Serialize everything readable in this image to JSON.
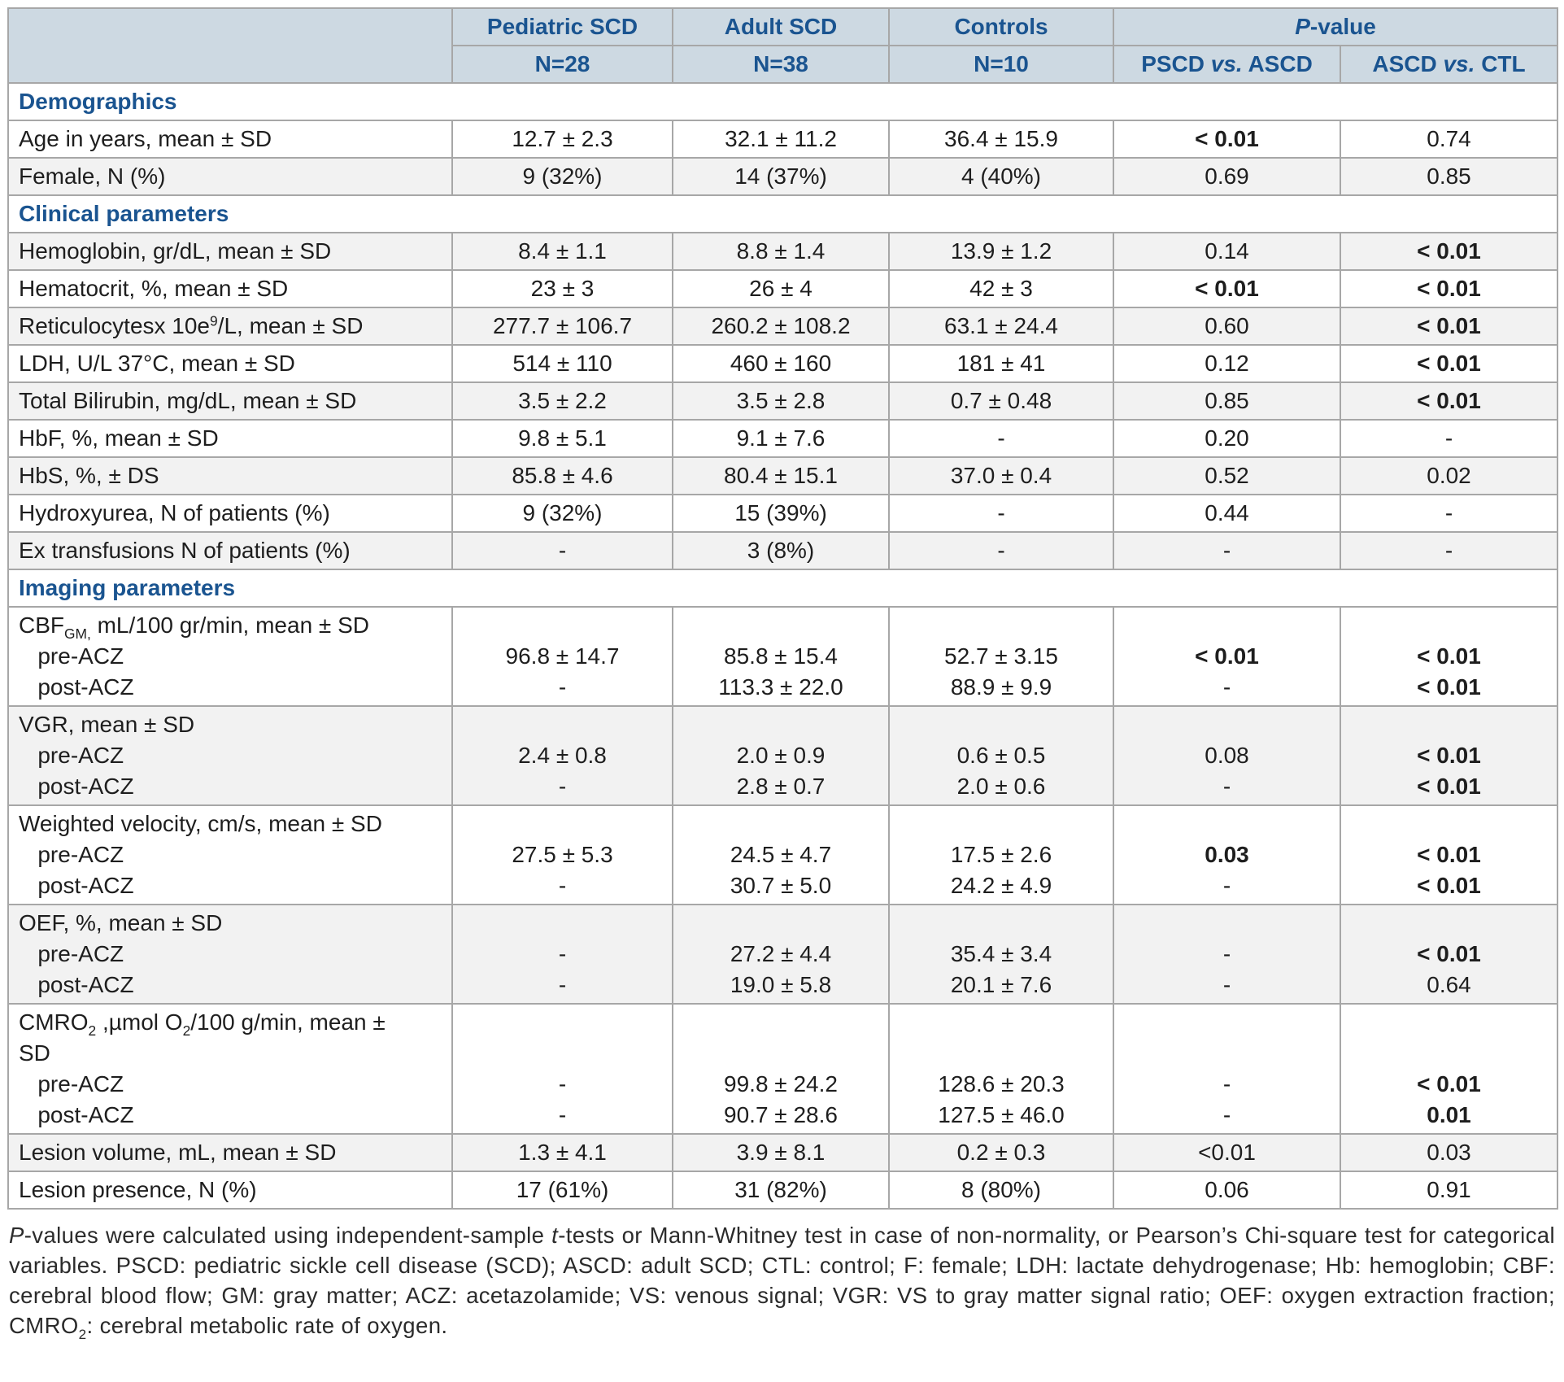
{
  "colors": {
    "header_bg": "#cdd9e2",
    "accent_blue": "#1a5490",
    "row_shade": "#f2f2f2",
    "border_gray": "#a7a7a7"
  },
  "table": {
    "header": {
      "corner": "",
      "cols": [
        {
          "title": [
            {
              "t": "Pediatric SCD"
            }
          ],
          "sub": [
            {
              "t": "N=28"
            }
          ]
        },
        {
          "title": [
            {
              "t": "Adult SCD"
            }
          ],
          "sub": [
            {
              "t": "N=38"
            }
          ]
        },
        {
          "title": [
            {
              "t": "Controls"
            }
          ],
          "sub": [
            {
              "t": "N=10"
            }
          ]
        }
      ],
      "pvalue": {
        "title": [
          {
            "t": "P",
            "s": "i"
          },
          {
            "t": "-value"
          }
        ],
        "subs": [
          [
            {
              "t": "PSCD "
            },
            {
              "t": "vs.",
              "s": "i"
            },
            {
              "t": " ASCD"
            }
          ],
          [
            {
              "t": "ASCD "
            },
            {
              "t": "vs.",
              "s": "i"
            },
            {
              "t": " CTL"
            }
          ]
        ]
      }
    },
    "rows": [
      {
        "kind": "section",
        "label": [
          {
            "t": "Demographics"
          }
        ]
      },
      {
        "kind": "data",
        "shade": false,
        "label": [
          {
            "t": "Age in years, mean ± SD"
          }
        ],
        "cells": [
          [
            {
              "t": "12.7 ± 2.3"
            }
          ],
          [
            {
              "t": "32.1 ± 11.2"
            }
          ],
          [
            {
              "t": "36.4 ± 15.9"
            }
          ],
          [
            {
              "t": "< 0.01",
              "s": "b"
            }
          ],
          [
            {
              "t": "0.74"
            }
          ]
        ]
      },
      {
        "kind": "data",
        "shade": true,
        "label": [
          {
            "t": "Female, N (%)"
          }
        ],
        "cells": [
          [
            {
              "t": "9 (32%)"
            }
          ],
          [
            {
              "t": "14 (37%)"
            }
          ],
          [
            {
              "t": "4 (40%)"
            }
          ],
          [
            {
              "t": "0.69"
            }
          ],
          [
            {
              "t": "0.85"
            }
          ]
        ]
      },
      {
        "kind": "section",
        "label": [
          {
            "t": "Clinical parameters"
          }
        ]
      },
      {
        "kind": "data",
        "shade": true,
        "label": [
          {
            "t": "Hemoglobin, gr/dL, mean ± SD"
          }
        ],
        "cells": [
          [
            {
              "t": "8.4 ± 1.1"
            }
          ],
          [
            {
              "t": "8.8 ± 1.4"
            }
          ],
          [
            {
              "t": "13.9 ± 1.2"
            }
          ],
          [
            {
              "t": "0.14"
            }
          ],
          [
            {
              "t": "< 0.01",
              "s": "b"
            }
          ]
        ]
      },
      {
        "kind": "data",
        "shade": false,
        "label": [
          {
            "t": "Hematocrit, %, mean ± SD"
          }
        ],
        "cells": [
          [
            {
              "t": "23 ± 3"
            }
          ],
          [
            {
              "t": "26 ± 4"
            }
          ],
          [
            {
              "t": "42 ± 3"
            }
          ],
          [
            {
              "t": "< 0.01",
              "s": "b"
            }
          ],
          [
            {
              "t": "< 0.01",
              "s": "b"
            }
          ]
        ]
      },
      {
        "kind": "data",
        "shade": true,
        "label": [
          {
            "t": "Reticulocytesx 10e"
          },
          {
            "t": "9",
            "s": "sup"
          },
          {
            "t": "/L, mean ± SD"
          }
        ],
        "cells": [
          [
            {
              "t": "277.7 ± 106.7"
            }
          ],
          [
            {
              "t": "260.2 ± 108.2"
            }
          ],
          [
            {
              "t": "63.1 ± 24.4"
            }
          ],
          [
            {
              "t": "0.60"
            }
          ],
          [
            {
              "t": "< 0.01",
              "s": "b"
            }
          ]
        ]
      },
      {
        "kind": "data",
        "shade": false,
        "label": [
          {
            "t": "LDH, U/L 37°C, mean ± SD"
          }
        ],
        "cells": [
          [
            {
              "t": "514 ± 110"
            }
          ],
          [
            {
              "t": "460 ± 160"
            }
          ],
          [
            {
              "t": "181 ± 41"
            }
          ],
          [
            {
              "t": "0.12"
            }
          ],
          [
            {
              "t": "< 0.01",
              "s": "b"
            }
          ]
        ]
      },
      {
        "kind": "data",
        "shade": true,
        "label": [
          {
            "t": "Total Bilirubin, mg/dL, mean ± SD"
          }
        ],
        "cells": [
          [
            {
              "t": "3.5 ± 2.2"
            }
          ],
          [
            {
              "t": "3.5 ± 2.8"
            }
          ],
          [
            {
              "t": "0.7 ± 0.48"
            }
          ],
          [
            {
              "t": "0.85"
            }
          ],
          [
            {
              "t": "< 0.01",
              "s": "b"
            }
          ]
        ]
      },
      {
        "kind": "data",
        "shade": false,
        "label": [
          {
            "t": "HbF, %, mean ± SD"
          }
        ],
        "cells": [
          [
            {
              "t": "9.8 ± 5.1"
            }
          ],
          [
            {
              "t": "9.1 ± 7.6"
            }
          ],
          [
            {
              "t": "-"
            }
          ],
          [
            {
              "t": "0.20"
            }
          ],
          [
            {
              "t": "-"
            }
          ]
        ]
      },
      {
        "kind": "data",
        "shade": true,
        "label": [
          {
            "t": "HbS, %, ± DS"
          }
        ],
        "cells": [
          [
            {
              "t": "85.8 ± 4.6"
            }
          ],
          [
            {
              "t": "80.4 ± 15.1"
            }
          ],
          [
            {
              "t": "37.0 ± 0.4"
            }
          ],
          [
            {
              "t": "0.52"
            }
          ],
          [
            {
              "t": "0.02"
            }
          ]
        ]
      },
      {
        "kind": "data",
        "shade": false,
        "label": [
          {
            "t": "Hydroxyurea, N of patients (%)"
          }
        ],
        "cells": [
          [
            {
              "t": "9 (32%)"
            }
          ],
          [
            {
              "t": "15 (39%)"
            }
          ],
          [
            {
              "t": "-"
            }
          ],
          [
            {
              "t": "0.44"
            }
          ],
          [
            {
              "t": "-"
            }
          ]
        ]
      },
      {
        "kind": "data",
        "shade": true,
        "label": [
          {
            "t": "Ex transfusions N of patients (%)"
          }
        ],
        "cells": [
          [
            {
              "t": "-"
            }
          ],
          [
            {
              "t": "3 (8%)"
            }
          ],
          [
            {
              "t": "-"
            }
          ],
          [
            {
              "t": "-"
            }
          ],
          [
            {
              "t": "-"
            }
          ]
        ]
      },
      {
        "kind": "section",
        "label": [
          {
            "t": "Imaging parameters"
          }
        ]
      },
      {
        "kind": "data",
        "shade": false,
        "label": [
          {
            "t": "CBF"
          },
          {
            "t": "GM,",
            "s": "sub"
          },
          {
            "t": " mL/100 gr/min, mean ± SD\n   pre-ACZ\n   post-ACZ"
          }
        ],
        "cells": [
          [
            {
              "t": "\n96.8 ± 14.7\n-"
            }
          ],
          [
            {
              "t": "\n85.8 ± 15.4\n113.3 ± 22.0"
            }
          ],
          [
            {
              "t": "\n52.7 ± 3.15\n88.9 ± 9.9"
            }
          ],
          [
            {
              "t": "\n"
            },
            {
              "t": "< 0.01",
              "s": "b"
            },
            {
              "t": "\n-"
            }
          ],
          [
            {
              "t": "\n"
            },
            {
              "t": "< 0.01",
              "s": "b"
            },
            {
              "t": "\n"
            },
            {
              "t": "< 0.01",
              "s": "b"
            }
          ]
        ]
      },
      {
        "kind": "data",
        "shade": true,
        "label": [
          {
            "t": "VGR, mean ± SD\n   pre-ACZ\n   post-ACZ"
          }
        ],
        "cells": [
          [
            {
              "t": "\n2.4 ± 0.8\n-"
            }
          ],
          [
            {
              "t": "\n2.0 ± 0.9\n2.8 ± 0.7"
            }
          ],
          [
            {
              "t": "\n0.6 ± 0.5\n2.0 ± 0.6"
            }
          ],
          [
            {
              "t": "\n0.08\n-"
            }
          ],
          [
            {
              "t": "\n"
            },
            {
              "t": "< 0.01",
              "s": "b"
            },
            {
              "t": "\n"
            },
            {
              "t": "< 0.01",
              "s": "b"
            }
          ]
        ]
      },
      {
        "kind": "data",
        "shade": false,
        "label": [
          {
            "t": "Weighted velocity, cm/s, mean ± SD\n   pre-ACZ\n   post-ACZ"
          }
        ],
        "cells": [
          [
            {
              "t": "\n27.5 ± 5.3\n-"
            }
          ],
          [
            {
              "t": "\n24.5 ± 4.7\n30.7 ± 5.0"
            }
          ],
          [
            {
              "t": "\n17.5 ± 2.6\n24.2 ± 4.9"
            }
          ],
          [
            {
              "t": "\n"
            },
            {
              "t": "0.03",
              "s": "b"
            },
            {
              "t": "\n-"
            }
          ],
          [
            {
              "t": "\n"
            },
            {
              "t": "< 0.01",
              "s": "b"
            },
            {
              "t": "\n"
            },
            {
              "t": "< 0.01",
              "s": "b"
            }
          ]
        ]
      },
      {
        "kind": "data",
        "shade": true,
        "label": [
          {
            "t": "OEF, %, mean ± SD\n   pre-ACZ\n   post-ACZ"
          }
        ],
        "cells": [
          [
            {
              "t": "\n-\n-"
            }
          ],
          [
            {
              "t": "\n27.2 ± 4.4\n19.0 ± 5.8"
            }
          ],
          [
            {
              "t": "\n35.4 ± 3.4\n20.1 ± 7.6"
            }
          ],
          [
            {
              "t": "\n-\n-"
            }
          ],
          [
            {
              "t": "\n"
            },
            {
              "t": "< 0.01",
              "s": "b"
            },
            {
              "t": "\n0.64"
            }
          ]
        ]
      },
      {
        "kind": "data",
        "shade": false,
        "label": [
          {
            "t": "CMRO"
          },
          {
            "t": "2",
            "s": "sub"
          },
          {
            "t": " ,µmol O"
          },
          {
            "t": "2",
            "s": "sub"
          },
          {
            "t": "/100 g/min, mean ±\nSD\n   pre-ACZ\n   post-ACZ"
          }
        ],
        "cells": [
          [
            {
              "t": "\n\n-\n-"
            }
          ],
          [
            {
              "t": "\n\n99.8 ± 24.2\n90.7 ± 28.6"
            }
          ],
          [
            {
              "t": "\n\n128.6 ± 20.3\n127.5 ± 46.0"
            }
          ],
          [
            {
              "t": "\n\n-\n-"
            }
          ],
          [
            {
              "t": "\n\n"
            },
            {
              "t": "< 0.01",
              "s": "b"
            },
            {
              "t": "\n"
            },
            {
              "t": "0.01",
              "s": "b"
            }
          ]
        ]
      },
      {
        "kind": "data",
        "shade": true,
        "label": [
          {
            "t": "Lesion volume, mL, mean ± SD"
          }
        ],
        "cells": [
          [
            {
              "t": "1.3 ± 4.1"
            }
          ],
          [
            {
              "t": "3.9 ± 8.1"
            }
          ],
          [
            {
              "t": "0.2 ± 0.3"
            }
          ],
          [
            {
              "t": "<0.01"
            }
          ],
          [
            {
              "t": "0.03"
            }
          ]
        ]
      },
      {
        "kind": "data",
        "shade": false,
        "label": [
          {
            "t": "Lesion presence, N (%)"
          }
        ],
        "cells": [
          [
            {
              "t": "17 (61%)"
            }
          ],
          [
            {
              "t": "31 (82%)"
            }
          ],
          [
            {
              "t": "8 (80%)"
            }
          ],
          [
            {
              "t": "0.06"
            }
          ],
          [
            {
              "t": "0.91"
            }
          ]
        ]
      }
    ]
  },
  "footnote": {
    "segments": [
      {
        "t": "P",
        "s": "i"
      },
      {
        "t": "-values were calculated using independent-sample "
      },
      {
        "t": "t",
        "s": "i"
      },
      {
        "t": "-tests or Mann-Whitney test in case of non-normality, or Pearson’s Chi-square test for categorical variables. PSCD: pediatric sickle cell disease (SCD); ASCD: adult SCD; CTL: control; F: female; LDH: lactate dehydrogenase; Hb: hemoglobin; CBF: cerebral blood flow; GM: gray matter; ACZ: acetazolamide; VS: venous signal; VGR: VS to gray matter signal ratio; OEF: oxygen extraction fraction; CMRO"
      },
      {
        "t": "2",
        "s": "sub"
      },
      {
        "t": ": cerebral metabolic rate of oxygen."
      }
    ]
  }
}
